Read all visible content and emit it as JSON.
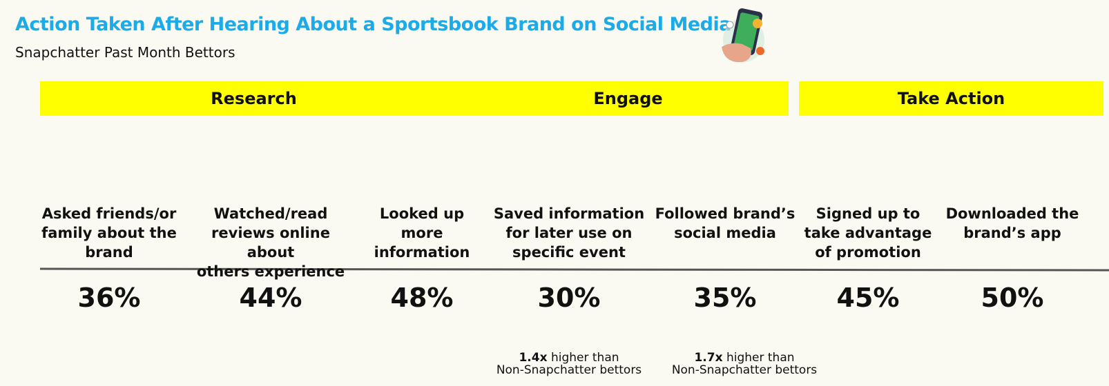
{
  "header": {
    "title": "Action Taken After Hearing About a Sportsbook Brand on Social Media",
    "subtitle": "Snapchatter Past Month Bettors"
  },
  "groups": [
    {
      "label": "Research"
    },
    {
      "label": "Engage"
    },
    {
      "label": "Take Action"
    }
  ],
  "items": [
    {
      "label": [
        "Asked friends/or",
        "family about the",
        "brand"
      ],
      "value": "36%"
    },
    {
      "label": [
        "Watched/read",
        "reviews online about",
        "others experience"
      ],
      "value": "44%"
    },
    {
      "label": [
        "Looked up",
        "more",
        "information"
      ],
      "value": "48%"
    },
    {
      "label": [
        "Saved information",
        "for later use on",
        "specific event"
      ],
      "value": "30%",
      "note": {
        "emphasis": "1.4x",
        "lines": [
          "higher than",
          "Non-Snapchatter bettors"
        ]
      }
    },
    {
      "label": [
        "Followed brand’s",
        "social media"
      ],
      "value": "35%",
      "note": {
        "emphasis": "1.7x",
        "lines": [
          "higher than",
          "Non-Snapchatter bettors"
        ]
      }
    },
    {
      "label": [
        "Signed up to",
        "take advantage",
        "of promotion"
      ],
      "value": "45%"
    },
    {
      "label": [
        "Downloaded the",
        "brand’s app"
      ],
      "value": "50%"
    }
  ]
}
